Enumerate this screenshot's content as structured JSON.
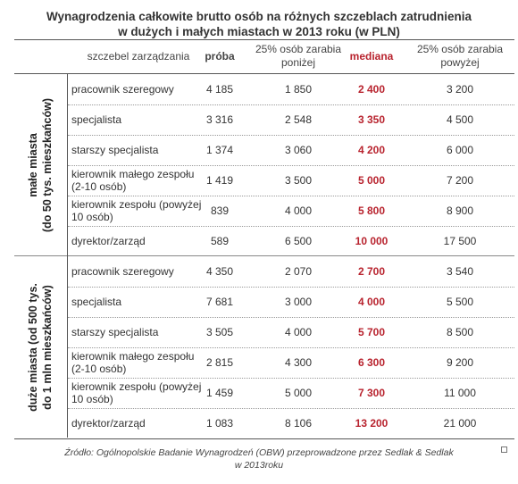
{
  "title_line1": "Wynagrodzenia całkowite brutto osób na różnych szczeblach zatrudnienia",
  "title_line2": "w dużych i małych miastach w 2013 roku (w PLN)",
  "headers": {
    "level": "szczebel zarządzania",
    "sample": "próba",
    "low": "25% osób zarabia poniżej",
    "median": "mediana",
    "high": "25% osób zarabia powyżej"
  },
  "groups": [
    {
      "label_line1": "małe miasta",
      "label_line2": "(do 50 tys. mieszkańców)",
      "rows": [
        {
          "level": "pracownik szeregowy",
          "sample": "4 185",
          "low": "1 850",
          "median": "2 400",
          "high": "3 200"
        },
        {
          "level": "specjalista",
          "sample": "3 316",
          "low": "2 548",
          "median": "3 350",
          "high": "4 500"
        },
        {
          "level": "starszy specjalista",
          "sample": "1 374",
          "low": "3 060",
          "median": "4 200",
          "high": "6 000"
        },
        {
          "level": "kierownik małego zespołu (2-10 osób)",
          "sample": "1 419",
          "low": "3 500",
          "median": "5 000",
          "high": "7 200"
        },
        {
          "level": "kierownik zespołu (powyżej 10 osób)",
          "sample": "839",
          "low": "4 000",
          "median": "5 800",
          "high": "8 900"
        },
        {
          "level": "dyrektor/zarząd",
          "sample": "589",
          "low": "6 500",
          "median": "10 000",
          "high": "17 500"
        }
      ]
    },
    {
      "label_line1": "duże miasta (od 500 tys.",
      "label_line2": "do 1 mln mieszkańców)",
      "rows": [
        {
          "level": "pracownik szeregowy",
          "sample": "4 350",
          "low": "2 070",
          "median": "2 700",
          "high": "3 540"
        },
        {
          "level": "specjalista",
          "sample": "7 681",
          "low": "3 000",
          "median": "4 000",
          "high": "5 500"
        },
        {
          "level": "starszy specjalista",
          "sample": "3 505",
          "low": "4 000",
          "median": "5 700",
          "high": "8 500"
        },
        {
          "level": "kierownik małego zespołu (2-10 osób)",
          "sample": "2 815",
          "low": "4 300",
          "median": "6 300",
          "high": "9 200"
        },
        {
          "level": "kierownik zespołu (powyżej 10 osób)",
          "sample": "1 459",
          "low": "5 000",
          "median": "7 300",
          "high": "11 000"
        },
        {
          "level": "dyrektor/zarząd",
          "sample": "1 083",
          "low": "8 106",
          "median": "13 200",
          "high": "21 000"
        }
      ]
    }
  ],
  "source_line1": "Źródło: Ogólnopolskie Badanie Wynagrodzeń (OBW) przeprowadzone przez Sedlak & Sedlak",
  "source_line2": "w 2013roku"
}
